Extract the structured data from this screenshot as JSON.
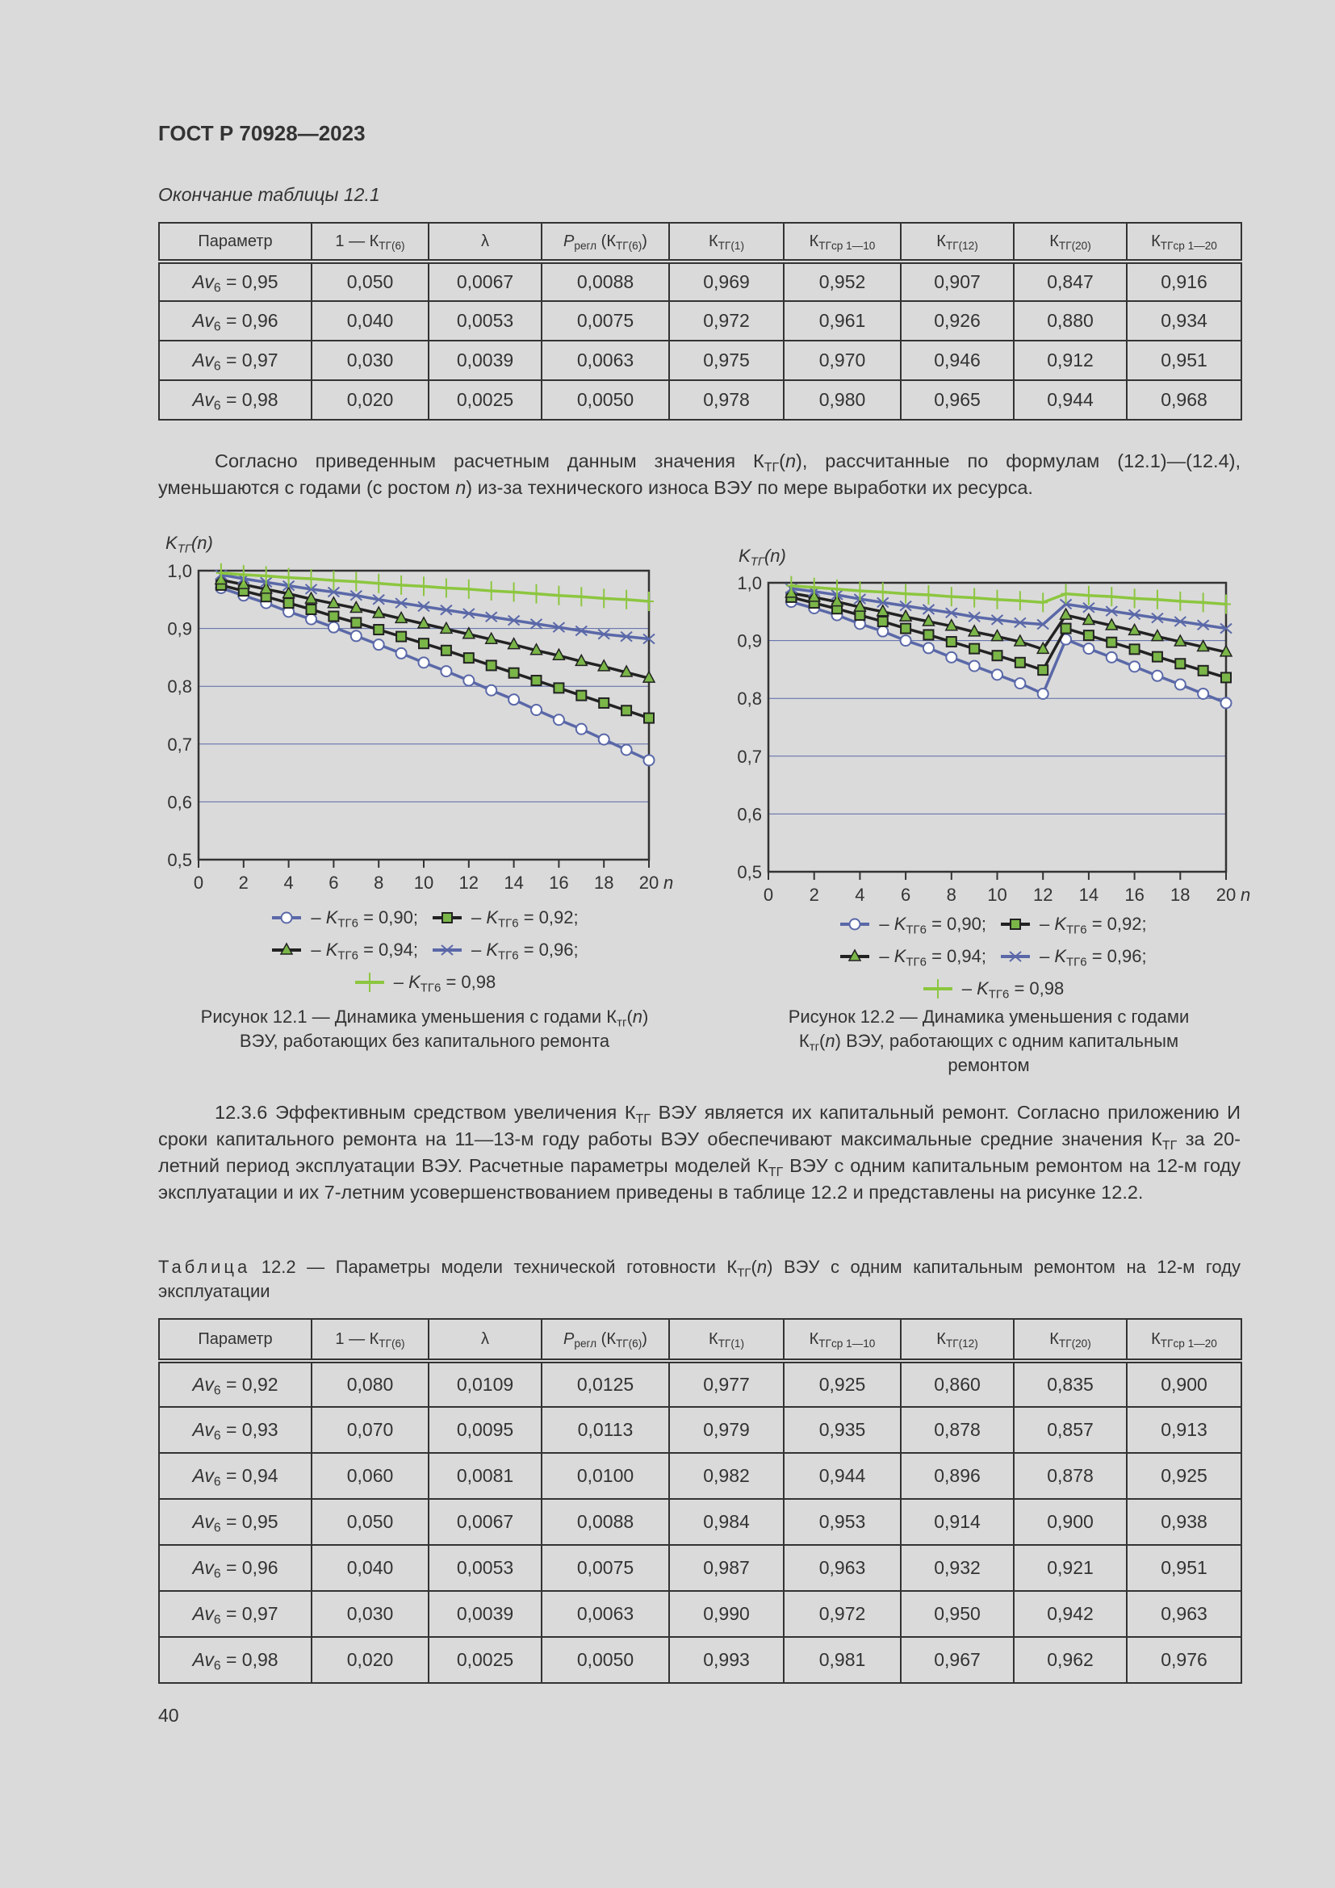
{
  "header": {
    "doc_id": "ГОСТ Р 70928—2023"
  },
  "table1": {
    "caption": "Окончание таблицы 12.1",
    "headers": [
      [
        "Параметр"
      ],
      [
        "1 — К",
        {
          "sub": "ТГ(6)"
        }
      ],
      [
        "λ"
      ],
      [
        {
          "i": "P"
        },
        {
          "sub": "регл"
        },
        " (К",
        {
          "sub": "ТГ(6)"
        },
        ")"
      ],
      [
        "К",
        {
          "sub": "ТГ(1)"
        }
      ],
      [
        "К",
        {
          "sub": "ТГср 1—10"
        }
      ],
      [
        "К",
        {
          "sub": "ТГ(12)"
        }
      ],
      [
        "К",
        {
          "sub": "ТГ(20)"
        }
      ],
      [
        "К",
        {
          "sub": "ТГср 1—20"
        }
      ]
    ],
    "rows": [
      {
        "param": [
          {
            "i": "Av"
          },
          {
            "sub": "6"
          },
          " = 0,95"
        ],
        "cells": [
          "0,050",
          "0,0067",
          "0,0088",
          "0,969",
          "0,952",
          "0,907",
          "0,847",
          "0,916"
        ]
      },
      {
        "param": [
          {
            "i": "Av"
          },
          {
            "sub": "6"
          },
          " = 0,96"
        ],
        "cells": [
          "0,040",
          "0,0053",
          "0,0075",
          "0,972",
          "0,961",
          "0,926",
          "0,880",
          "0,934"
        ]
      },
      {
        "param": [
          {
            "i": "Av"
          },
          {
            "sub": "6"
          },
          " = 0,97"
        ],
        "cells": [
          "0,030",
          "0,0039",
          "0,0063",
          "0,975",
          "0,970",
          "0,946",
          "0,912",
          "0,951"
        ]
      },
      {
        "param": [
          {
            "i": "Av"
          },
          {
            "sub": "6"
          },
          " = 0,98"
        ],
        "cells": [
          "0,020",
          "0,0025",
          "0,0050",
          "0,978",
          "0,980",
          "0,965",
          "0,944",
          "0,968"
        ]
      }
    ]
  },
  "paragraph1": [
    "Согласно приведенным расчетным данным значения К",
    {
      "sub": "ТГ"
    },
    "(",
    {
      "i": "n"
    },
    "), рассчитанные по формулам (12.1)—(12.4), уменьшаются с годами (с ростом ",
    {
      "i": "n"
    },
    ") из-за технического износа ВЭУ по мере выработки их ресурса."
  ],
  "chart_data": [
    {
      "type": "line",
      "ylabel": [
        {
          "i": "K"
        },
        {
          "sub": "ТГ"
        },
        "(",
        {
          "i": "n"
        },
        ")"
      ],
      "xlabel": "n",
      "xlim": [
        0,
        20
      ],
      "ylim": [
        0.5,
        1.0
      ],
      "xticks": [
        "0",
        "2",
        "4",
        "6",
        "8",
        "10",
        "12",
        "14",
        "16",
        "18",
        "20"
      ],
      "yticks": [
        "0,5",
        "0,6",
        "0,7",
        "0,8",
        "0,9",
        "1,0"
      ],
      "grid": "horizontal",
      "legend_placement": "bottom",
      "x": [
        1,
        2,
        3,
        4,
        5,
        6,
        7,
        8,
        9,
        10,
        11,
        12,
        13,
        14,
        15,
        16,
        17,
        18,
        19,
        20
      ],
      "series": [
        {
          "name": [
            " – ",
            {
              "i": "K"
            },
            {
              "sub": "ТГ6"
            },
            " = 0,90;"
          ],
          "marker": "circle",
          "values": [
            0.97,
            0.957,
            0.944,
            0.929,
            0.916,
            0.902,
            0.887,
            0.872,
            0.857,
            0.841,
            0.826,
            0.81,
            0.793,
            0.777,
            0.759,
            0.742,
            0.726,
            0.708,
            0.69,
            0.672
          ]
        },
        {
          "name": [
            " – ",
            {
              "i": "K"
            },
            {
              "sub": "ТГ6"
            },
            " = 0,92;"
          ],
          "marker": "square",
          "values": [
            0.975,
            0.965,
            0.955,
            0.944,
            0.933,
            0.921,
            0.91,
            0.898,
            0.886,
            0.874,
            0.862,
            0.849,
            0.836,
            0.823,
            0.81,
            0.797,
            0.784,
            0.771,
            0.758,
            0.745
          ]
        },
        {
          "name": [
            " – ",
            {
              "i": "K"
            },
            {
              "sub": "ТГ6"
            },
            " = 0,94;"
          ],
          "marker": "triangle",
          "values": [
            0.984,
            0.976,
            0.968,
            0.96,
            0.951,
            0.943,
            0.935,
            0.926,
            0.917,
            0.908,
            0.899,
            0.89,
            0.881,
            0.872,
            0.862,
            0.853,
            0.843,
            0.834,
            0.824,
            0.814
          ]
        },
        {
          "name": [
            " – ",
            {
              "i": "K"
            },
            {
              "sub": "ТГ6"
            },
            " = 0,96;"
          ],
          "marker": "x",
          "values": [
            0.993,
            0.986,
            0.98,
            0.974,
            0.968,
            0.963,
            0.957,
            0.95,
            0.944,
            0.938,
            0.932,
            0.926,
            0.92,
            0.914,
            0.908,
            0.902,
            0.896,
            0.89,
            0.886,
            0.882
          ]
        },
        {
          "name": [
            " – ",
            {
              "i": "K"
            },
            {
              "sub": "ТГ6"
            },
            " = 0,98"
          ],
          "marker": "plus",
          "values": [
            0.996,
            0.993,
            0.991,
            0.988,
            0.986,
            0.983,
            0.981,
            0.978,
            0.975,
            0.973,
            0.97,
            0.968,
            0.965,
            0.963,
            0.96,
            0.957,
            0.955,
            0.952,
            0.95,
            0.947
          ]
        }
      ],
      "caption": [
        "Рисунок 12.1 — Динамика уменьшения с годами К",
        {
          "sub": "тг"
        },
        "(",
        {
          "i": "n"
        },
        ")",
        {
          "br": true
        },
        "ВЭУ, работающих без капитального ремонта"
      ]
    },
    {
      "type": "line",
      "ylabel": [
        {
          "i": "K"
        },
        {
          "sub": "ТГ"
        },
        "(",
        {
          "i": "n"
        },
        ")"
      ],
      "xlabel": "n",
      "xlim": [
        0,
        20
      ],
      "ylim": [
        0.5,
        1.0
      ],
      "xticks": [
        "0",
        "2",
        "4",
        "6",
        "8",
        "10",
        "12",
        "14",
        "16",
        "18",
        "20"
      ],
      "yticks": [
        "0,5",
        "0,6",
        "0,7",
        "0,8",
        "0,9",
        "1,0"
      ],
      "grid": "horizontal",
      "legend_placement": "bottom",
      "x": [
        1,
        2,
        3,
        4,
        5,
        6,
        7,
        8,
        9,
        10,
        11,
        12,
        13,
        14,
        15,
        16,
        17,
        18,
        19,
        20
      ],
      "series": [
        {
          "name": [
            " – ",
            {
              "i": "K"
            },
            {
              "sub": "ТГ6"
            },
            " = 0,90;"
          ],
          "marker": "circle",
          "values": [
            0.967,
            0.956,
            0.944,
            0.929,
            0.916,
            0.9,
            0.887,
            0.871,
            0.856,
            0.841,
            0.826,
            0.808,
            0.902,
            0.886,
            0.871,
            0.855,
            0.839,
            0.824,
            0.808,
            0.792
          ]
        },
        {
          "name": [
            " – ",
            {
              "i": "K"
            },
            {
              "sub": "ТГ6"
            },
            " = 0,92;"
          ],
          "marker": "square",
          "values": [
            0.975,
            0.965,
            0.955,
            0.944,
            0.933,
            0.921,
            0.91,
            0.898,
            0.886,
            0.874,
            0.862,
            0.849,
            0.921,
            0.909,
            0.897,
            0.885,
            0.872,
            0.86,
            0.848,
            0.836
          ]
        },
        {
          "name": [
            " – ",
            {
              "i": "K"
            },
            {
              "sub": "ТГ6"
            },
            " = 0,94;"
          ],
          "marker": "triangle",
          "values": [
            0.982,
            0.975,
            0.967,
            0.958,
            0.95,
            0.941,
            0.933,
            0.925,
            0.915,
            0.907,
            0.898,
            0.885,
            0.944,
            0.935,
            0.926,
            0.917,
            0.907,
            0.898,
            0.889,
            0.88
          ]
        },
        {
          "name": [
            " – ",
            {
              "i": "K"
            },
            {
              "sub": "ТГ6"
            },
            " = 0,96;"
          ],
          "marker": "x",
          "values": [
            0.99,
            0.985,
            0.979,
            0.972,
            0.966,
            0.96,
            0.954,
            0.948,
            0.941,
            0.936,
            0.931,
            0.928,
            0.963,
            0.957,
            0.951,
            0.945,
            0.939,
            0.933,
            0.927,
            0.921
          ]
        },
        {
          "name": [
            " – ",
            {
              "i": "K"
            },
            {
              "sub": "ТГ6"
            },
            " = 0,98"
          ],
          "marker": "plus",
          "values": [
            0.995,
            0.992,
            0.989,
            0.986,
            0.984,
            0.981,
            0.979,
            0.976,
            0.974,
            0.971,
            0.969,
            0.966,
            0.981,
            0.978,
            0.976,
            0.973,
            0.971,
            0.968,
            0.966,
            0.963
          ]
        }
      ],
      "caption": [
        "Рисунок 12.2 — Динамика уменьшения с годами",
        {
          "br": true
        },
        "К",
        {
          "sub": "тг"
        },
        "(",
        {
          "i": "n"
        },
        ") ВЭУ, работающих с одним капитальным",
        {
          "br": true
        },
        "ремонтом"
      ]
    }
  ],
  "series_style": {
    "circle": {
      "line": "#5a68a8",
      "fill": "#ffffff",
      "stroke": "#5a68a8"
    },
    "square": {
      "line": "#222222",
      "fill": "#7ab648",
      "stroke": "#222222"
    },
    "triangle": {
      "line": "#222222",
      "fill": "#7ab648",
      "stroke": "#222222"
    },
    "x": {
      "line": "#5a68a8",
      "fill": "none",
      "stroke": "#5a68a8"
    },
    "plus": {
      "line": "#8cc63f",
      "fill": "none",
      "stroke": "#8cc63f"
    },
    "grid": "#5a68a8"
  },
  "paragraph2": [
    "12.3.6 Эффективным средством увеличения К",
    {
      "sub": "ТГ"
    },
    " ВЭУ является их капитальный ремонт. Согласно приложению И сроки капитального ремонта на 11—13-м году работы ВЭУ обеспечивают максимальные средние значения К",
    {
      "sub": "ТГ"
    },
    " за 20-летний период эксплуатации ВЭУ. Расчетные параметры моделей К",
    {
      "sub": "ТГ"
    },
    " ВЭУ с одним капитальным ремонтом на 12-м году эксплуатации и их 7-летним усовершенствованием приведены в таблице 12.2 и представлены на рисунке 12.2."
  ],
  "table2": {
    "caption": [
      {
        "sp": "Таблица"
      },
      " 12.2 — Параметры модели технической готовности К",
      {
        "sub": "ТГ"
      },
      "(",
      {
        "i": "n"
      },
      ") ВЭУ с одним капитальным ремонтом на 12-м году эксплуатации"
    ],
    "headers": [
      [
        "Параметр"
      ],
      [
        "1 — К",
        {
          "sub": "ТГ(6)"
        }
      ],
      [
        "λ"
      ],
      [
        {
          "i": "P"
        },
        {
          "sub": "регл"
        },
        " (К",
        {
          "sub": "ТГ(6)"
        },
        ")"
      ],
      [
        "К",
        {
          "sub": "ТГ(1)"
        }
      ],
      [
        "К",
        {
          "sub": "ТГср 1—10"
        }
      ],
      [
        "К",
        {
          "sub": "ТГ(12)"
        }
      ],
      [
        "К",
        {
          "sub": "ТГ(20)"
        }
      ],
      [
        "К",
        {
          "sub": "ТГср 1—20"
        }
      ]
    ],
    "rows": [
      {
        "param": [
          {
            "i": "Av"
          },
          {
            "sub": "6"
          },
          " = 0,92"
        ],
        "cells": [
          "0,080",
          "0,0109",
          "0,0125",
          "0,977",
          "0,925",
          "0,860",
          "0,835",
          "0,900"
        ]
      },
      {
        "param": [
          {
            "i": "Av"
          },
          {
            "sub": "6"
          },
          " = 0,93"
        ],
        "cells": [
          "0,070",
          "0,0095",
          "0,0113",
          "0,979",
          "0,935",
          "0,878",
          "0,857",
          "0,913"
        ]
      },
      {
        "param": [
          {
            "i": "Av"
          },
          {
            "sub": "6"
          },
          " = 0,94"
        ],
        "cells": [
          "0,060",
          "0,0081",
          "0,0100",
          "0,982",
          "0,944",
          "0,896",
          "0,878",
          "0,925"
        ]
      },
      {
        "param": [
          {
            "i": "Av"
          },
          {
            "sub": "6"
          },
          " = 0,95"
        ],
        "cells": [
          "0,050",
          "0,0067",
          "0,0088",
          "0,984",
          "0,953",
          "0,914",
          "0,900",
          "0,938"
        ]
      },
      {
        "param": [
          {
            "i": "Av"
          },
          {
            "sub": "6"
          },
          " = 0,96"
        ],
        "cells": [
          "0,040",
          "0,0053",
          "0,0075",
          "0,987",
          "0,963",
          "0,932",
          "0,921",
          "0,951"
        ]
      },
      {
        "param": [
          {
            "i": "Av"
          },
          {
            "sub": "6"
          },
          " = 0,97"
        ],
        "cells": [
          "0,030",
          "0,0039",
          "0,0063",
          "0,990",
          "0,972",
          "0,950",
          "0,942",
          "0,963"
        ]
      },
      {
        "param": [
          {
            "i": "Av"
          },
          {
            "sub": "6"
          },
          " = 0,98"
        ],
        "cells": [
          "0,020",
          "0,0025",
          "0,0050",
          "0,993",
          "0,981",
          "0,967",
          "0,962",
          "0,976"
        ]
      }
    ]
  },
  "page_number": "40"
}
